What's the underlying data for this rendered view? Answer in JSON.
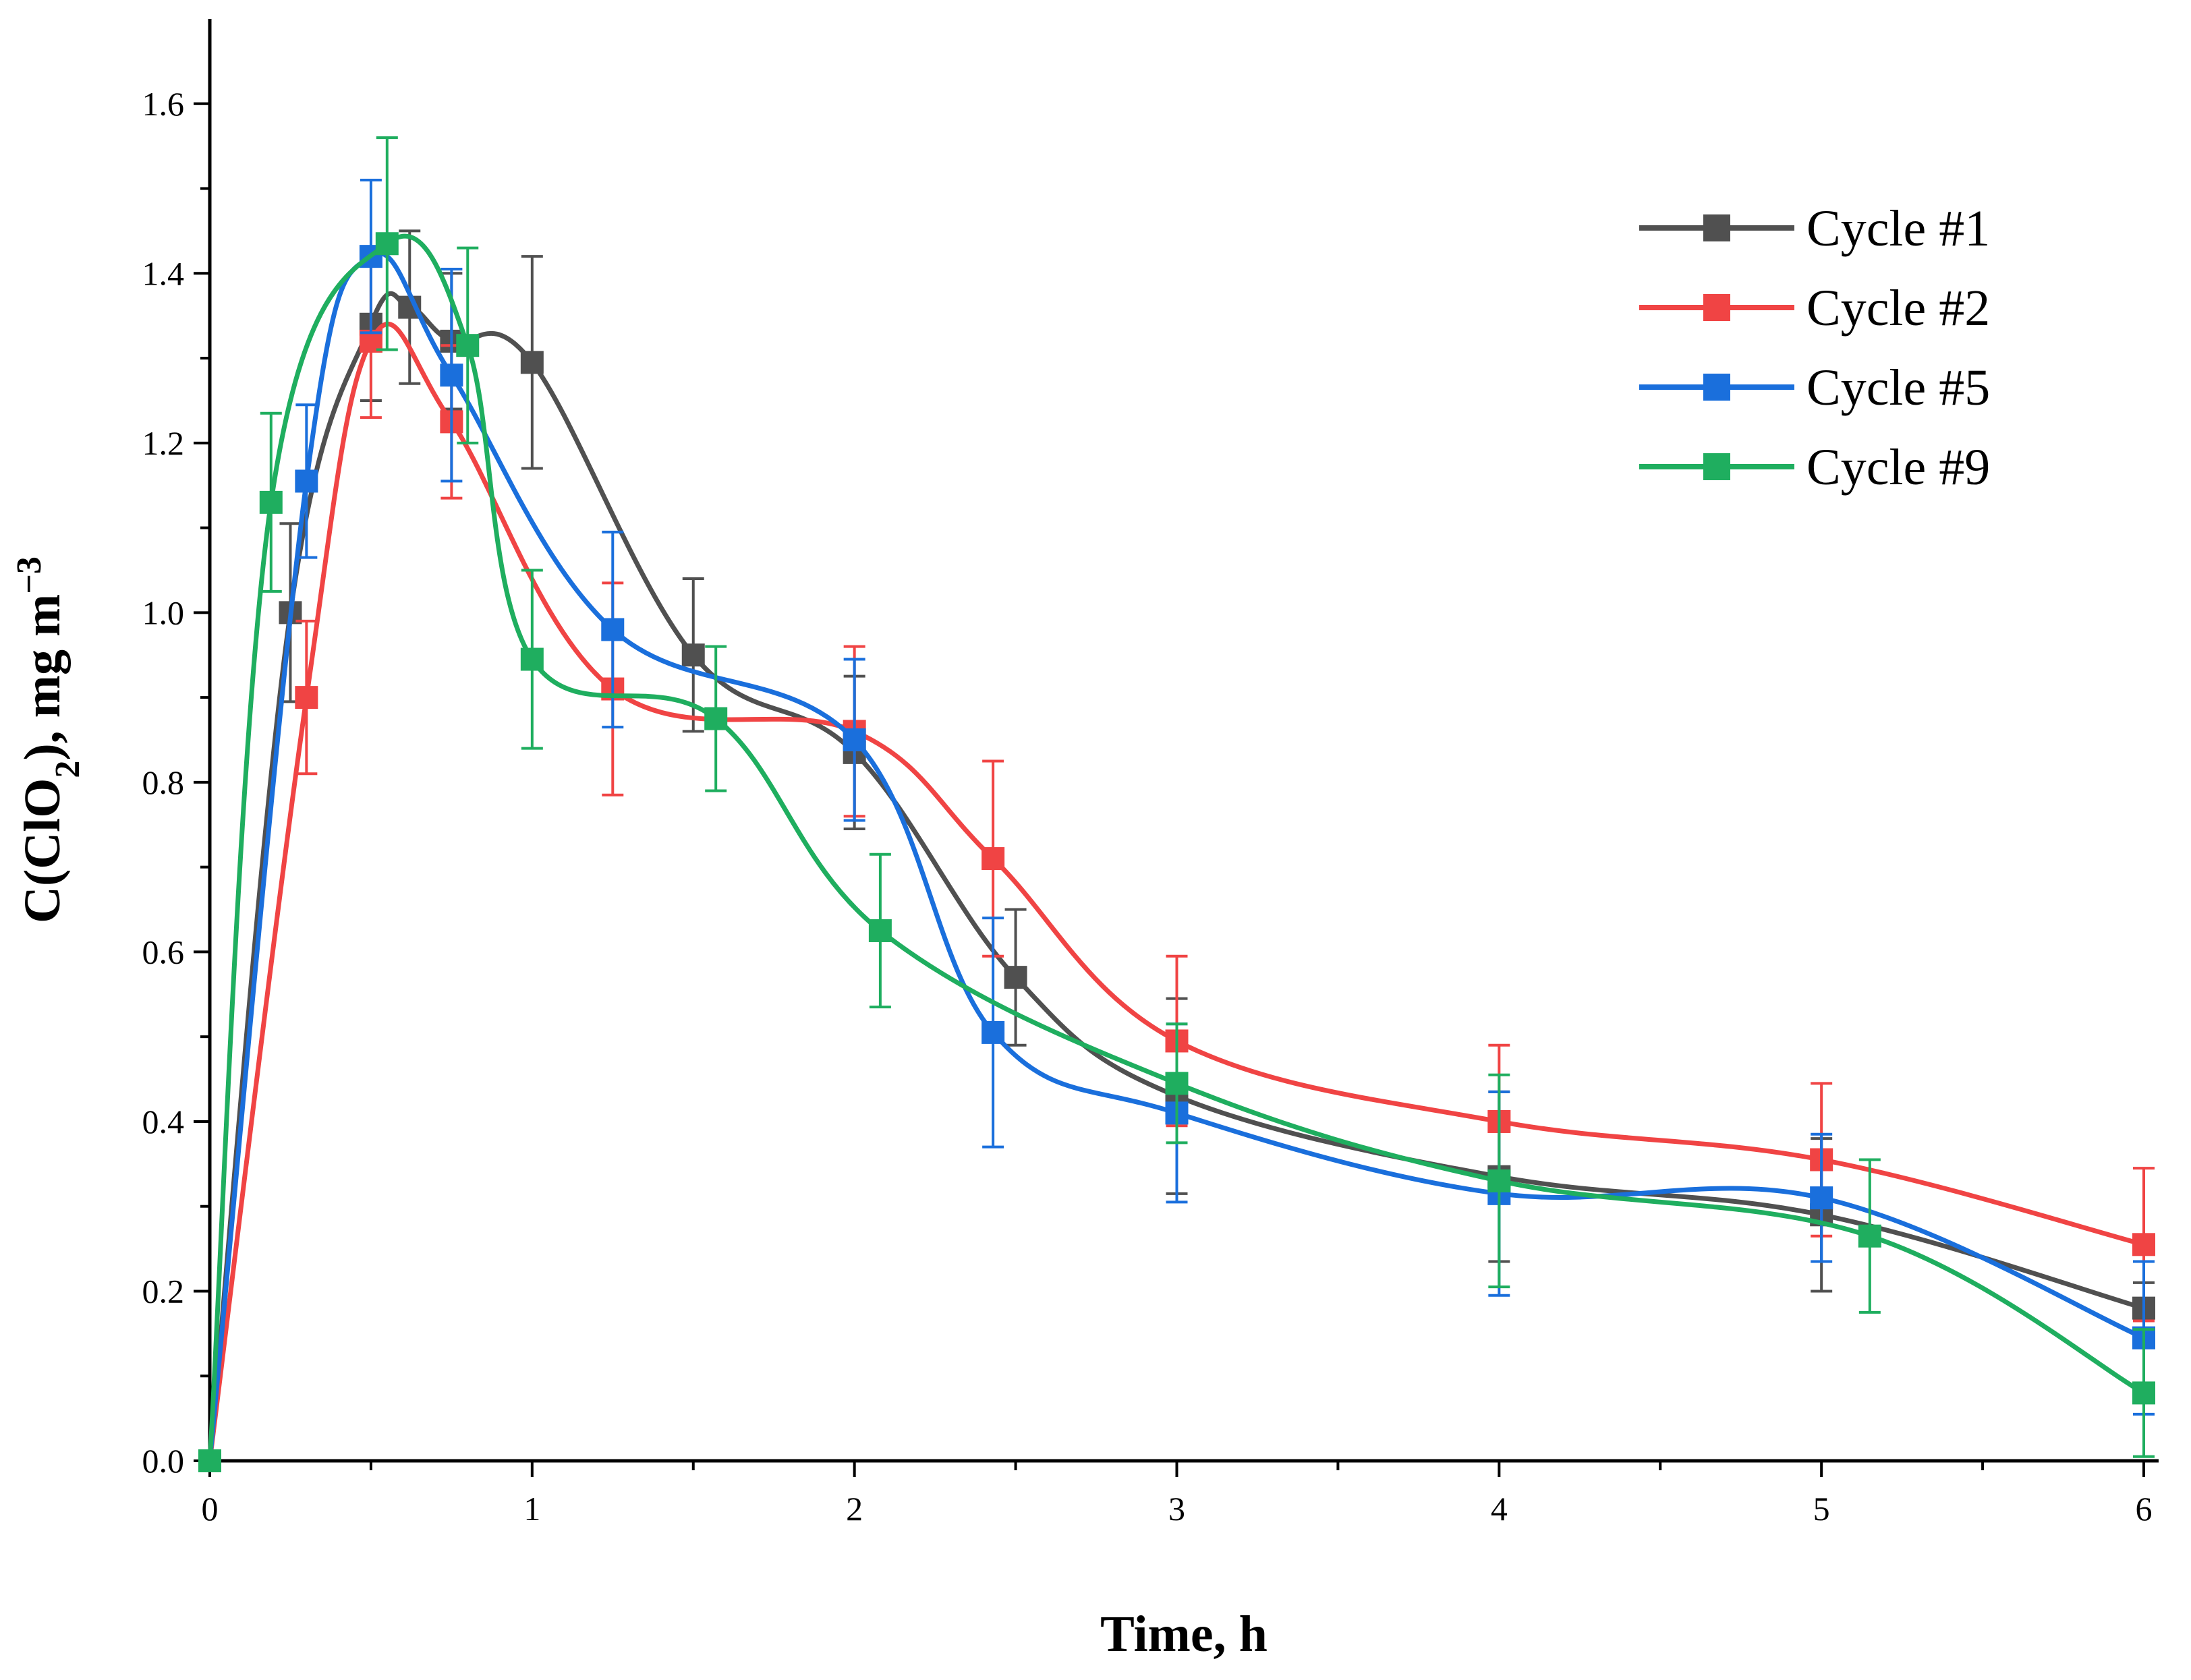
{
  "chart_data": {
    "type": "line",
    "title": "",
    "xlabel": "Time, h",
    "ylabel_main": "C(ClO",
    "ylabel_sub": "2",
    "ylabel_tail": "), mg m",
    "ylabel_sup": "−3",
    "xlim": [
      0,
      6
    ],
    "ylim": [
      0,
      1.7
    ],
    "xticks": [
      0,
      1,
      2,
      3,
      4,
      5,
      6
    ],
    "xtick_labels": [
      "0",
      "1",
      "2",
      "3",
      "4",
      "5",
      "6"
    ],
    "yticks": [
      0.0,
      0.2,
      0.4,
      0.6,
      0.8,
      1.0,
      1.2,
      1.4,
      1.6
    ],
    "ytick_labels": [
      "0.0",
      "0.2",
      "0.4",
      "0.6",
      "0.8",
      "1.0",
      "1.2",
      "1.4",
      "1.6"
    ],
    "legend_position": "top-right",
    "grid": false,
    "series": [
      {
        "name": "Cycle #1",
        "color": "#505050",
        "x": [
          0,
          0.25,
          0.5,
          0.62,
          0.75,
          1.0,
          1.5,
          2.0,
          2.5,
          3.0,
          4.0,
          5.0,
          6.0
        ],
        "y": [
          0,
          1.0,
          1.34,
          1.36,
          1.32,
          1.295,
          0.95,
          0.835,
          0.57,
          0.43,
          0.335,
          0.29,
          0.18
        ],
        "err": [
          0,
          0.105,
          0.09,
          0.09,
          0.08,
          0.125,
          0.09,
          0.09,
          0.08,
          0.115,
          0.1,
          0.09,
          0.03
        ]
      },
      {
        "name": "Cycle #2",
        "color": "#f04444",
        "x": [
          0,
          0.3,
          0.5,
          0.75,
          1.25,
          2.0,
          2.43,
          3.0,
          4.0,
          5.0,
          6.0
        ],
        "y": [
          0,
          0.9,
          1.32,
          1.225,
          0.91,
          0.86,
          0.71,
          0.495,
          0.4,
          0.355,
          0.255
        ],
        "err": [
          0,
          0.09,
          0.09,
          0.09,
          0.125,
          0.1,
          0.115,
          0.1,
          0.09,
          0.09,
          0.09
        ]
      },
      {
        "name": "Cycle #5",
        "color": "#1a6fdc",
        "x": [
          0,
          0.3,
          0.5,
          0.75,
          1.25,
          2.0,
          2.43,
          3.0,
          4.0,
          5.0,
          6.0
        ],
        "y": [
          0,
          1.155,
          1.42,
          1.28,
          0.98,
          0.85,
          0.505,
          0.41,
          0.315,
          0.31,
          0.145
        ],
        "err": [
          0,
          0.09,
          0.09,
          0.125,
          0.115,
          0.095,
          0.135,
          0.105,
          0.12,
          0.075,
          0.09
        ]
      },
      {
        "name": "Cycle #9",
        "color": "#1fae5f",
        "x": [
          0,
          0.19,
          0.55,
          0.8,
          1.0,
          1.57,
          2.08,
          3.0,
          4.0,
          5.15,
          6.0
        ],
        "y": [
          0,
          1.13,
          1.435,
          1.315,
          0.945,
          0.875,
          0.625,
          0.445,
          0.33,
          0.265,
          0.08
        ],
        "err": [
          0,
          0.105,
          0.125,
          0.115,
          0.105,
          0.085,
          0.09,
          0.07,
          0.125,
          0.09,
          0.075
        ]
      }
    ]
  }
}
